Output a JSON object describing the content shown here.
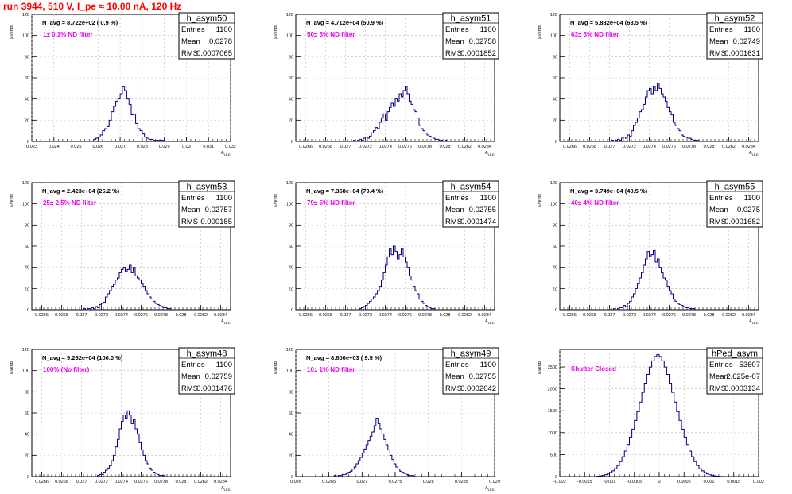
{
  "title": "run 3944,   510 V, I_pe ≈ 10.00 nA, 120 Hz",
  "chart_data": [
    {
      "type": "histogram",
      "name": "h_asym50",
      "navg": "N_avg = 8.722e+02 ( 0.9 %)",
      "filter": "1± 0.1% ND filter",
      "stats": {
        "Entries": "1100",
        "Mean": "0.0278",
        "RMS": "0.0007065"
      },
      "xlabel": "A_{LED}",
      "ylabel": "Events",
      "xlim": [
        0.023,
        0.032
      ],
      "ylim": [
        0,
        120
      ],
      "xticks": [
        0.023,
        0.024,
        0.025,
        0.026,
        0.027,
        0.028,
        0.029,
        0.03,
        0.031,
        0.032
      ],
      "xtick_labels": [
        "0.023",
        "0.024",
        "0.025",
        "0.026",
        "0.027",
        "0.028",
        "0.029",
        "0.03",
        "0.031",
        "0.032"
      ],
      "yticks": [
        0,
        20,
        40,
        60,
        80,
        100,
        120
      ],
      "bin_start": 0.0258,
      "bin_width": 0.0001,
      "values": [
        2,
        3,
        4,
        6,
        10,
        12,
        14,
        20,
        28,
        33,
        38,
        40,
        45,
        52,
        48,
        40,
        35,
        25,
        26,
        17,
        12,
        10,
        7,
        4,
        3,
        2,
        2,
        1,
        1,
        1,
        1,
        1,
        0,
        0
      ],
      "minor_tick_step": 0.0002,
      "grid": true
    },
    {
      "type": "histogram",
      "name": "h_asym51",
      "navg": "N_avg = 4.712e+04 (50.9 %)",
      "filter": "50± 5% ND filter",
      "stats": {
        "Entries": "1100",
        "Mean": "0.02758",
        "RMS": "0.0001852"
      },
      "xlabel": "A_{LED}",
      "ylabel": "Events",
      "xlim": [
        0.0265,
        0.0285
      ],
      "ylim": [
        0,
        120
      ],
      "xticks": [
        0.0266,
        0.0268,
        0.027,
        0.0272,
        0.0274,
        0.0276,
        0.0278,
        0.028,
        0.0282,
        0.0284
      ],
      "xtick_labels": [
        "0.0266",
        "0.0268",
        "0.027",
        "0.0272",
        "0.0274",
        "0.0276",
        "0.0278",
        "0.028",
        "0.0282",
        "0.0284"
      ],
      "yticks": [
        0,
        20,
        40,
        60,
        80,
        100,
        120
      ],
      "bin_start": 0.02708,
      "bin_width": 2e-05,
      "values": [
        1,
        0,
        1,
        2,
        1,
        3,
        4,
        3,
        5,
        8,
        10,
        13,
        12,
        18,
        22,
        26,
        20,
        28,
        32,
        36,
        33,
        40,
        38,
        45,
        42,
        48,
        52,
        45,
        38,
        35,
        30,
        28,
        22,
        15,
        12,
        10,
        8,
        6,
        5,
        4,
        3,
        2,
        2,
        1,
        1,
        0,
        1
      ],
      "minor_tick_step": 4e-05,
      "grid": true
    },
    {
      "type": "histogram",
      "name": "h_asym52",
      "navg": "N_avg = 5.882e+04 (63.5 %)",
      "filter": "63± 5% ND filter",
      "stats": {
        "Entries": "1100",
        "Mean": "0.02749",
        "RMS": "0.0001631"
      },
      "xlabel": "A_{LED}",
      "ylabel": "Events",
      "xlim": [
        0.0265,
        0.0285
      ],
      "ylim": [
        0,
        120
      ],
      "xticks": [
        0.0266,
        0.0268,
        0.027,
        0.0272,
        0.0274,
        0.0276,
        0.0278,
        0.028,
        0.0282,
        0.0284
      ],
      "xtick_labels": [
        "0.0266",
        "0.0268",
        "0.027",
        "0.0272",
        "0.0274",
        "0.0276",
        "0.0278",
        "0.028",
        "0.0282",
        "0.0284"
      ],
      "yticks": [
        0,
        20,
        40,
        60,
        80,
        100,
        120
      ],
      "bin_start": 0.02702,
      "bin_width": 2e-05,
      "values": [
        1,
        0,
        1,
        2,
        1,
        3,
        4,
        3,
        6,
        5,
        10,
        15,
        18,
        22,
        28,
        30,
        35,
        42,
        48,
        50,
        45,
        52,
        48,
        55,
        50,
        45,
        42,
        38,
        32,
        28,
        25,
        18,
        15,
        12,
        10,
        6,
        5,
        4,
        3,
        3,
        2,
        1,
        1,
        1
      ],
      "minor_tick_step": 4e-05,
      "grid": true
    },
    {
      "type": "histogram",
      "name": "h_asym53",
      "navg": "N_avg = 2.423e+04 (26.2 %)",
      "filter": "25± 2.5% ND filter",
      "stats": {
        "Entries": "1100",
        "Mean": "0.02757",
        "RMS": "0.000185"
      },
      "xlabel": "A_{LED}",
      "ylabel": "Events",
      "xlim": [
        0.0265,
        0.0285
      ],
      "ylim": [
        0,
        120
      ],
      "xticks": [
        0.0266,
        0.0268,
        0.027,
        0.0272,
        0.0274,
        0.0276,
        0.0278,
        0.028,
        0.0282,
        0.0284
      ],
      "xtick_labels": [
        "0.0266",
        "0.0268",
        "0.027",
        "0.0272",
        "0.0274",
        "0.0276",
        "0.0278",
        "0.028",
        "0.0282",
        "0.0284"
      ],
      "yticks": [
        0,
        20,
        40,
        60,
        80,
        100,
        120
      ],
      "bin_start": 0.02702,
      "bin_width": 2e-05,
      "values": [
        1,
        0,
        1,
        1,
        2,
        1,
        3,
        2,
        5,
        6,
        7,
        12,
        15,
        18,
        22,
        24,
        28,
        30,
        35,
        38,
        40,
        36,
        38,
        42,
        35,
        40,
        32,
        30,
        28,
        25,
        22,
        18,
        15,
        12,
        10,
        8,
        6,
        5,
        4,
        3,
        2,
        2,
        1,
        1
      ],
      "minor_tick_step": 4e-05,
      "grid": true
    },
    {
      "type": "histogram",
      "name": "h_asym54",
      "navg": "N_avg = 7.358e+04 (79.4 %)",
      "filter": "79± 5% ND filter",
      "stats": {
        "Entries": "1100",
        "Mean": "0.02755",
        "RMS": "0.0001474"
      },
      "xlabel": "A_{LED}",
      "ylabel": "Events",
      "xlim": [
        0.0265,
        0.0285
      ],
      "ylim": [
        0,
        120
      ],
      "xticks": [
        0.0266,
        0.0268,
        0.027,
        0.0272,
        0.0274,
        0.0276,
        0.0278,
        0.028,
        0.0282,
        0.0284
      ],
      "xtick_labels": [
        "0.0266",
        "0.0268",
        "0.027",
        "0.0272",
        "0.0274",
        "0.0276",
        "0.0278",
        "0.028",
        "0.0282",
        "0.0284"
      ],
      "yticks": [
        0,
        20,
        40,
        60,
        80,
        100,
        120
      ],
      "bin_start": 0.02714,
      "bin_width": 2e-05,
      "values": [
        1,
        2,
        3,
        4,
        6,
        8,
        10,
        12,
        15,
        18,
        22,
        28,
        35,
        42,
        50,
        58,
        52,
        60,
        55,
        48,
        52,
        58,
        50,
        45,
        40,
        32,
        28,
        22,
        18,
        15,
        10,
        8,
        6,
        4,
        3,
        2,
        1,
        1
      ],
      "minor_tick_step": 4e-05,
      "grid": true
    },
    {
      "type": "histogram",
      "name": "h_asym55",
      "navg": "N_avg = 3.749e+04 (40.5 %)",
      "filter": "40± 4% ND filter",
      "stats": {
        "Entries": "1100",
        "Mean": "0.0275",
        "RMS": "0.0001682"
      },
      "xlabel": "A_{LED}",
      "ylabel": "Events",
      "xlim": [
        0.0265,
        0.0285
      ],
      "ylim": [
        0,
        120
      ],
      "xticks": [
        0.0266,
        0.0268,
        0.027,
        0.0272,
        0.0274,
        0.0276,
        0.0278,
        0.028,
        0.0282,
        0.0284
      ],
      "xtick_labels": [
        "0.0266",
        "0.0268",
        "0.027",
        "0.0272",
        "0.0274",
        "0.0276",
        "0.0278",
        "0.028",
        "0.0282",
        "0.0284"
      ],
      "yticks": [
        0,
        20,
        40,
        60,
        80,
        100,
        120
      ],
      "bin_start": 0.02704,
      "bin_width": 2e-05,
      "values": [
        1,
        0,
        1,
        2,
        2,
        4,
        3,
        6,
        8,
        12,
        15,
        20,
        25,
        30,
        35,
        42,
        48,
        55,
        50,
        52,
        56,
        45,
        48,
        40,
        35,
        30,
        28,
        22,
        18,
        15,
        10,
        8,
        6,
        5,
        4,
        3,
        2,
        2,
        1,
        1,
        1
      ],
      "minor_tick_step": 4e-05,
      "grid": true
    },
    {
      "type": "histogram",
      "name": "h_asym48",
      "navg": "N_avg = 9.262e+04 (100.0 %)",
      "filter": "100% (No filter)",
      "stats": {
        "Entries": "1100",
        "Mean": "0.02759",
        "RMS": "0.0001476"
      },
      "xlabel": "A_{LED}",
      "ylabel": "Events",
      "xlim": [
        0.0265,
        0.0285
      ],
      "ylim": [
        0,
        120
      ],
      "xticks": [
        0.0266,
        0.0268,
        0.027,
        0.0272,
        0.0274,
        0.0276,
        0.0278,
        0.028,
        0.0282,
        0.0284
      ],
      "xtick_labels": [
        "0.0266",
        "0.0268",
        "0.027",
        "0.0272",
        "0.0274",
        "0.0276",
        "0.0278",
        "0.028",
        "0.0282",
        "0.0284"
      ],
      "yticks": [
        0,
        20,
        40,
        60,
        80,
        100,
        120
      ],
      "bin_start": 0.02716,
      "bin_width": 2e-05,
      "values": [
        1,
        2,
        2,
        4,
        6,
        8,
        10,
        15,
        20,
        28,
        35,
        45,
        52,
        58,
        55,
        62,
        58,
        50,
        54,
        45,
        40,
        32,
        25,
        20,
        15,
        12,
        8,
        6,
        4,
        3,
        2,
        1,
        1,
        1
      ],
      "minor_tick_step": 4e-05,
      "grid": true
    },
    {
      "type": "histogram",
      "name": "h_asym49",
      "navg": "N_avg = 8.800e+03 ( 9.5 %)",
      "filter": "10± 1% ND filter",
      "stats": {
        "Entries": "1100",
        "Mean": "0.02755",
        "RMS": "0.0002642"
      },
      "xlabel": "A_{LED}",
      "ylabel": "Events",
      "xlim": [
        0.026,
        0.029
      ],
      "ylim": [
        0,
        120
      ],
      "xticks": [
        0.026,
        0.0265,
        0.027,
        0.0275,
        0.028,
        0.0285,
        0.029
      ],
      "xtick_labels": [
        "0.026",
        "0.0265",
        "0.027",
        "0.0275",
        "0.028",
        "0.0285",
        "0.029"
      ],
      "yticks": [
        0,
        20,
        40,
        60,
        80,
        100,
        120
      ],
      "bin_start": 0.02658,
      "bin_width": 3e-05,
      "values": [
        1,
        0,
        1,
        1,
        2,
        2,
        3,
        4,
        5,
        7,
        9,
        12,
        15,
        18,
        22,
        26,
        30,
        34,
        38,
        42,
        48,
        55,
        50,
        45,
        40,
        35,
        30,
        25,
        20,
        16,
        12,
        9,
        7,
        5,
        4,
        3,
        2,
        1,
        1,
        1
      ],
      "minor_tick_step": 0.0001,
      "grid": true
    },
    {
      "type": "histogram",
      "name": "hPed_asym",
      "navg": "",
      "filter": "Shutter Closed",
      "stats": {
        "Entries": "53607",
        "Mean": "2.625e-07",
        "RMS": "0.0003134"
      },
      "xlabel": "",
      "ylabel": "Events",
      "xlim": [
        -0.002,
        0.002
      ],
      "ylim": [
        0,
        2900
      ],
      "xticks": [
        -0.002,
        -0.0015,
        -0.001,
        -0.0005,
        0,
        0.0005,
        0.001,
        0.0015,
        0.002
      ],
      "xtick_labels": [
        "-0.002",
        "-0.0015",
        "-0.001",
        "-0.0005",
        "0",
        "0.0005",
        "0.001",
        "0.0015",
        "0.002"
      ],
      "yticks": [
        0,
        500,
        1000,
        1500,
        2000,
        2500
      ],
      "bin_start": -0.00125,
      "bin_width": 5e-05,
      "values": [
        8,
        15,
        25,
        40,
        60,
        90,
        130,
        180,
        250,
        340,
        450,
        580,
        730,
        900,
        1080,
        1280,
        1480,
        1700,
        1920,
        2130,
        2330,
        2500,
        2640,
        2740,
        2780,
        2740,
        2640,
        2500,
        2330,
        2130,
        1920,
        1700,
        1480,
        1280,
        1080,
        900,
        730,
        580,
        450,
        340,
        250,
        180,
        130,
        90,
        60,
        40,
        25,
        15,
        8,
        4
      ],
      "minor_tick_step": 0.0001,
      "grid": true
    }
  ]
}
